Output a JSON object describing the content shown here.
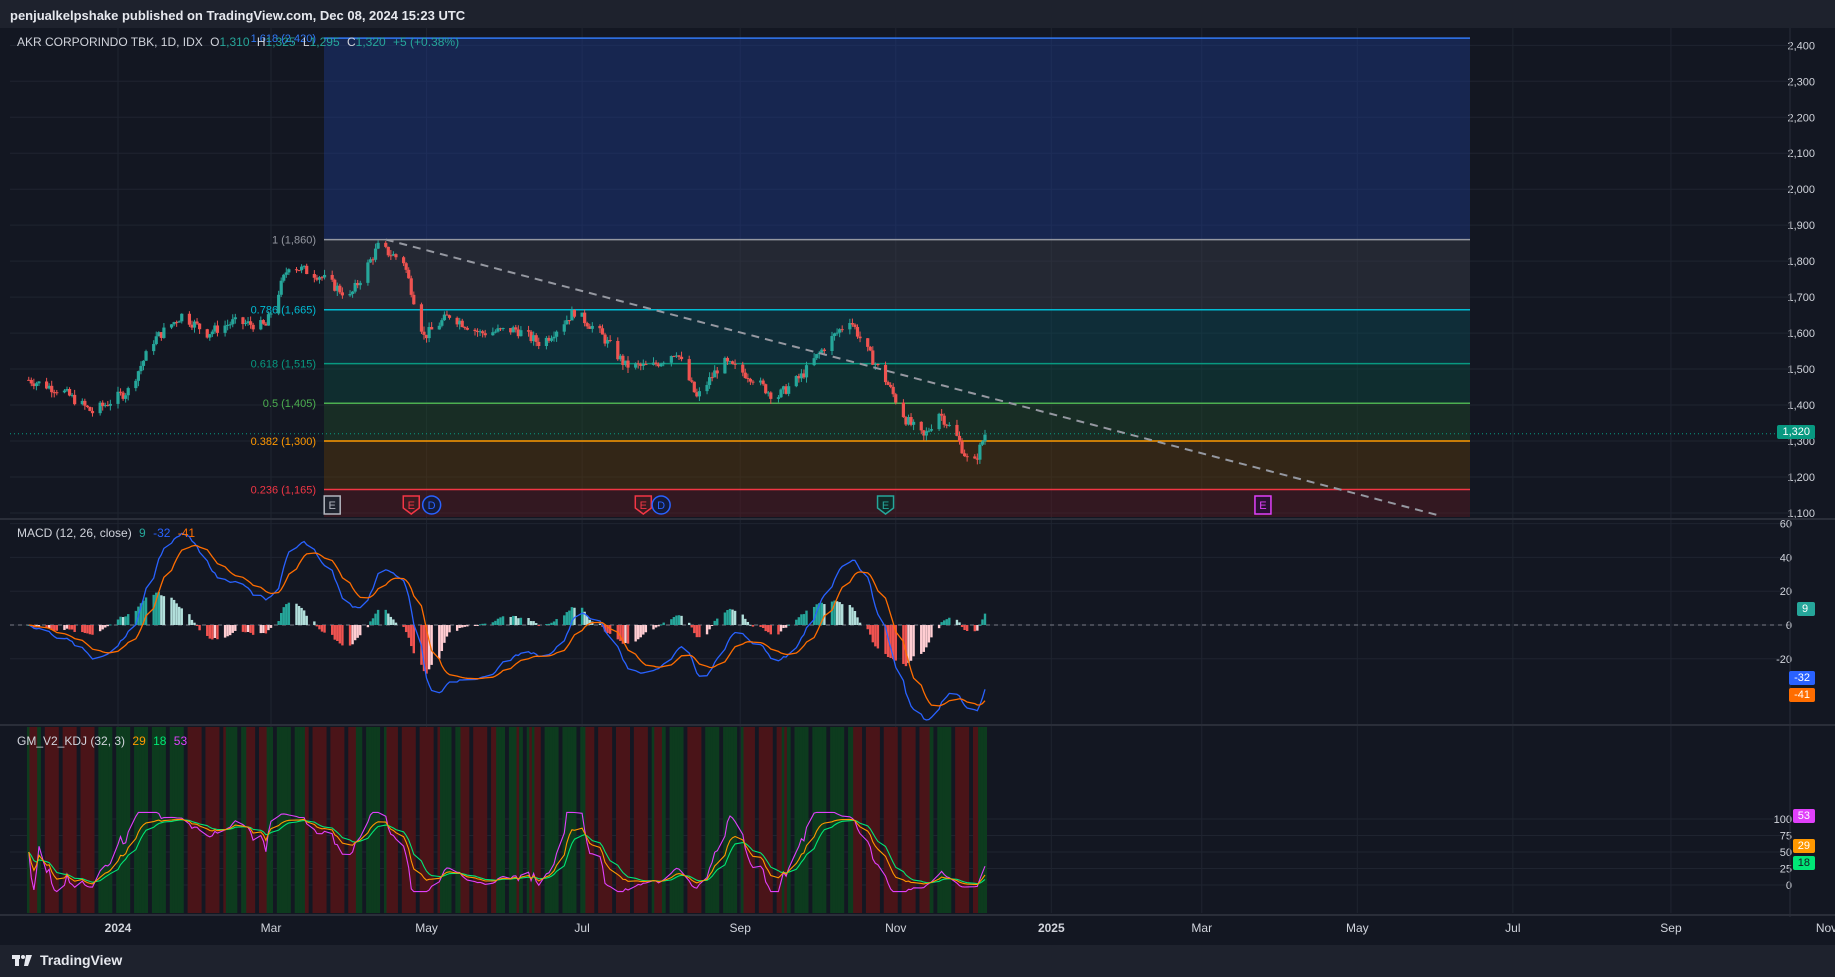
{
  "header": {
    "publish_text": "penjualkelpshake published on TradingView.com, Dec 08, 2024 15:23 UTC"
  },
  "symbol": {
    "name": "AKR CORPORINDO TBK, 1D, IDX",
    "open_label": "O",
    "open": "1,310",
    "high_label": "H",
    "high": "1,325",
    "low_label": "L",
    "low": "1,295",
    "close_label": "C",
    "close": "1,320",
    "change": "+5 (+0.38%)",
    "last_price": "1,320"
  },
  "price_axis": {
    "labels": [
      "2,400",
      "2,300",
      "2,200",
      "2,100",
      "2,000",
      "1,900",
      "1,800",
      "1,700",
      "1,600",
      "1,500",
      "1,400",
      "1,300",
      "1,200",
      "1,100"
    ],
    "values": [
      2400,
      2300,
      2200,
      2100,
      2000,
      1900,
      1800,
      1700,
      1600,
      1500,
      1400,
      1300,
      1200,
      1100
    ]
  },
  "fibonacci": {
    "levels": [
      {
        "label": "1.618 (2,420)",
        "price": 2420,
        "color": "#3179f5"
      },
      {
        "label": "1 (1,860)",
        "price": 1860,
        "color": "#9598a1"
      },
      {
        "label": "0.786 (1,665)",
        "price": 1665,
        "color": "#00bcd4"
      },
      {
        "label": "0.618 (1,515)",
        "price": 1515,
        "color": "#089981"
      },
      {
        "label": "0.5 (1,405)",
        "price": 1405,
        "color": "#4caf50"
      },
      {
        "label": "0.382 (1,300)",
        "price": 1300,
        "color": "#ff9800"
      },
      {
        "label": "0.236 (1,165)",
        "price": 1165,
        "color": "#f23645"
      }
    ]
  },
  "trendline": {
    "from": {
      "date": "2024-04-15",
      "price": 1860
    },
    "to": {
      "date": "2025-06-01",
      "price": 1095
    }
  },
  "events": [
    {
      "letter": "E",
      "kind": "earnings-past",
      "date": "2024-03-25"
    },
    {
      "letter": "E",
      "kind": "earnings",
      "date": "2024-04-25"
    },
    {
      "letter": "D",
      "kind": "dividend",
      "date": "2024-05-03"
    },
    {
      "letter": "E",
      "kind": "earnings",
      "date": "2024-07-25"
    },
    {
      "letter": "D",
      "kind": "dividend",
      "date": "2024-08-01"
    },
    {
      "letter": "E",
      "kind": "earnings-green",
      "date": "2024-10-28"
    },
    {
      "letter": "E",
      "kind": "earnings-future",
      "date": "2025-03-25"
    }
  ],
  "time_axis": {
    "labels": [
      "2024",
      "Mar",
      "May",
      "Jul",
      "Sep",
      "Nov",
      "2025",
      "Mar",
      "May",
      "Jul",
      "Sep",
      "Nov"
    ],
    "dates": [
      "2024-01-01",
      "2024-03-01",
      "2024-05-01",
      "2024-07-01",
      "2024-09-01",
      "2024-11-01",
      "2025-01-01",
      "2025-03-01",
      "2025-05-01",
      "2025-07-01",
      "2025-09-01",
      "2025-11-01"
    ]
  },
  "macd": {
    "title": "MACD (12, 26, close)",
    "hist": "9",
    "macd": "-32",
    "signal": "-41",
    "axis_labels": [
      "60",
      "40",
      "20",
      "0",
      "-20"
    ],
    "axis_values": [
      60,
      40,
      20,
      0,
      -20
    ],
    "colors": {
      "macd": "#2962ff",
      "signal": "#ff6d00",
      "hist_up": "#b2dfdb",
      "hist_up_strong": "#26a69a",
      "hist_down": "#ffcdd2",
      "hist_down_strong": "#ef5350"
    }
  },
  "kdj": {
    "title": "GM_V2_KDJ (32, 3)",
    "k": "29",
    "d": "18",
    "j": "53",
    "axis_labels": [
      "100",
      "75",
      "50",
      "25",
      "0"
    ],
    "axis_values": [
      100,
      75,
      50,
      25,
      0
    ],
    "colors": {
      "k": "#ff9800",
      "d": "#00e676",
      "j": "#e040fb"
    }
  },
  "chart_data": {
    "type": "candlestick",
    "x_start": "2023-11-27",
    "x_end": "2024-12-06",
    "ohlc_close_keypoints": [
      {
        "date": "2023-11-27",
        "close": 1470
      },
      {
        "date": "2023-12-10",
        "close": 1440
      },
      {
        "date": "2023-12-22",
        "close": 1380
      },
      {
        "date": "2024-01-05",
        "close": 1440
      },
      {
        "date": "2024-01-15",
        "close": 1580
      },
      {
        "date": "2024-01-26",
        "close": 1650
      },
      {
        "date": "2024-02-05",
        "close": 1600
      },
      {
        "date": "2024-02-15",
        "close": 1630
      },
      {
        "date": "2024-02-28",
        "close": 1620
      },
      {
        "date": "2024-03-08",
        "close": 1790
      },
      {
        "date": "2024-03-20",
        "close": 1760
      },
      {
        "date": "2024-04-01",
        "close": 1700
      },
      {
        "date": "2024-04-12",
        "close": 1840
      },
      {
        "date": "2024-04-22",
        "close": 1800
      },
      {
        "date": "2024-04-30",
        "close": 1590
      },
      {
        "date": "2024-05-10",
        "close": 1650
      },
      {
        "date": "2024-05-22",
        "close": 1600
      },
      {
        "date": "2024-06-05",
        "close": 1610
      },
      {
        "date": "2024-06-15",
        "close": 1570
      },
      {
        "date": "2024-06-28",
        "close": 1660
      },
      {
        "date": "2024-07-08",
        "close": 1600
      },
      {
        "date": "2024-07-18",
        "close": 1510
      },
      {
        "date": "2024-07-28",
        "close": 1505
      },
      {
        "date": "2024-08-07",
        "close": 1550
      },
      {
        "date": "2024-08-15",
        "close": 1420
      },
      {
        "date": "2024-08-25",
        "close": 1520
      },
      {
        "date": "2024-09-05",
        "close": 1480
      },
      {
        "date": "2024-09-15",
        "close": 1420
      },
      {
        "date": "2024-09-25",
        "close": 1480
      },
      {
        "date": "2024-10-05",
        "close": 1570
      },
      {
        "date": "2024-10-14",
        "close": 1640
      },
      {
        "date": "2024-10-20",
        "close": 1560
      },
      {
        "date": "2024-10-28",
        "close": 1470
      },
      {
        "date": "2024-11-05",
        "close": 1360
      },
      {
        "date": "2024-11-12",
        "close": 1310
      },
      {
        "date": "2024-11-18",
        "close": 1380
      },
      {
        "date": "2024-11-25",
        "close": 1310
      },
      {
        "date": "2024-12-01",
        "close": 1220
      },
      {
        "date": "2024-12-06",
        "close": 1320
      }
    ]
  }
}
